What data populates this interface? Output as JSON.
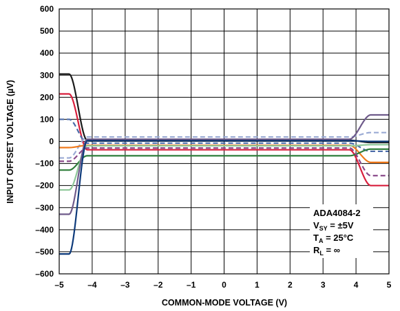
{
  "chart_data": {
    "type": "line",
    "title": "",
    "xlabel": "COMMON-MODE VOLTAGE (V)",
    "ylabel": "INPUT OFFSET VOLTAGE (µV)",
    "xlim": [
      -5,
      5
    ],
    "ylim": [
      -600,
      600
    ],
    "x_ticks": [
      "–5",
      "–4",
      "–3",
      "–2",
      "–1",
      "0",
      "1",
      "2",
      "3",
      "4",
      "5"
    ],
    "y_ticks": [
      "600",
      "500",
      "400",
      "300",
      "200",
      "100",
      "0",
      "–100",
      "–200",
      "–300",
      "–400",
      "–500",
      "–600"
    ],
    "grid": true,
    "annotation": {
      "part": "ADA4084-2",
      "vsy_main": "V",
      "vsy_sub": "SY",
      "vsy_value": " = ±5V",
      "ta_main": "T",
      "ta_sub": "A",
      "ta_value": " = 25°C",
      "rl_main": "R",
      "rl_sub": "L",
      "rl_value": " = ∞"
    },
    "series": [
      {
        "color": "#1a1a1a",
        "dash": false,
        "start": 305,
        "mid": 5,
        "end": -5
      },
      {
        "color": "#d81e3c",
        "dash": false,
        "start": 215,
        "mid": -38,
        "end": -200
      },
      {
        "color": "#4a6aa8",
        "dash": true,
        "start": 100,
        "mid": -8,
        "end": -45
      },
      {
        "color": "#9aaad4",
        "dash": true,
        "start": -75,
        "mid": 20,
        "end": 40
      },
      {
        "color": "#f07a1c",
        "dash": false,
        "start": -28,
        "mid": -18,
        "end": -95
      },
      {
        "color": "#2e7d3a",
        "dash": false,
        "start": -130,
        "mid": -65,
        "end": -35
      },
      {
        "color": "#8fc89a",
        "dash": false,
        "start": -220,
        "mid": -20,
        "end": -15
      },
      {
        "color": "#6e5a8a",
        "dash": false,
        "start": -330,
        "mid": 10,
        "end": 120
      },
      {
        "color": "#8a4a8a",
        "dash": true,
        "start": -90,
        "mid": -30,
        "end": -155
      },
      {
        "color": "#0d3a7a",
        "dash": false,
        "start": -510,
        "mid": 3,
        "end": 0
      }
    ]
  }
}
